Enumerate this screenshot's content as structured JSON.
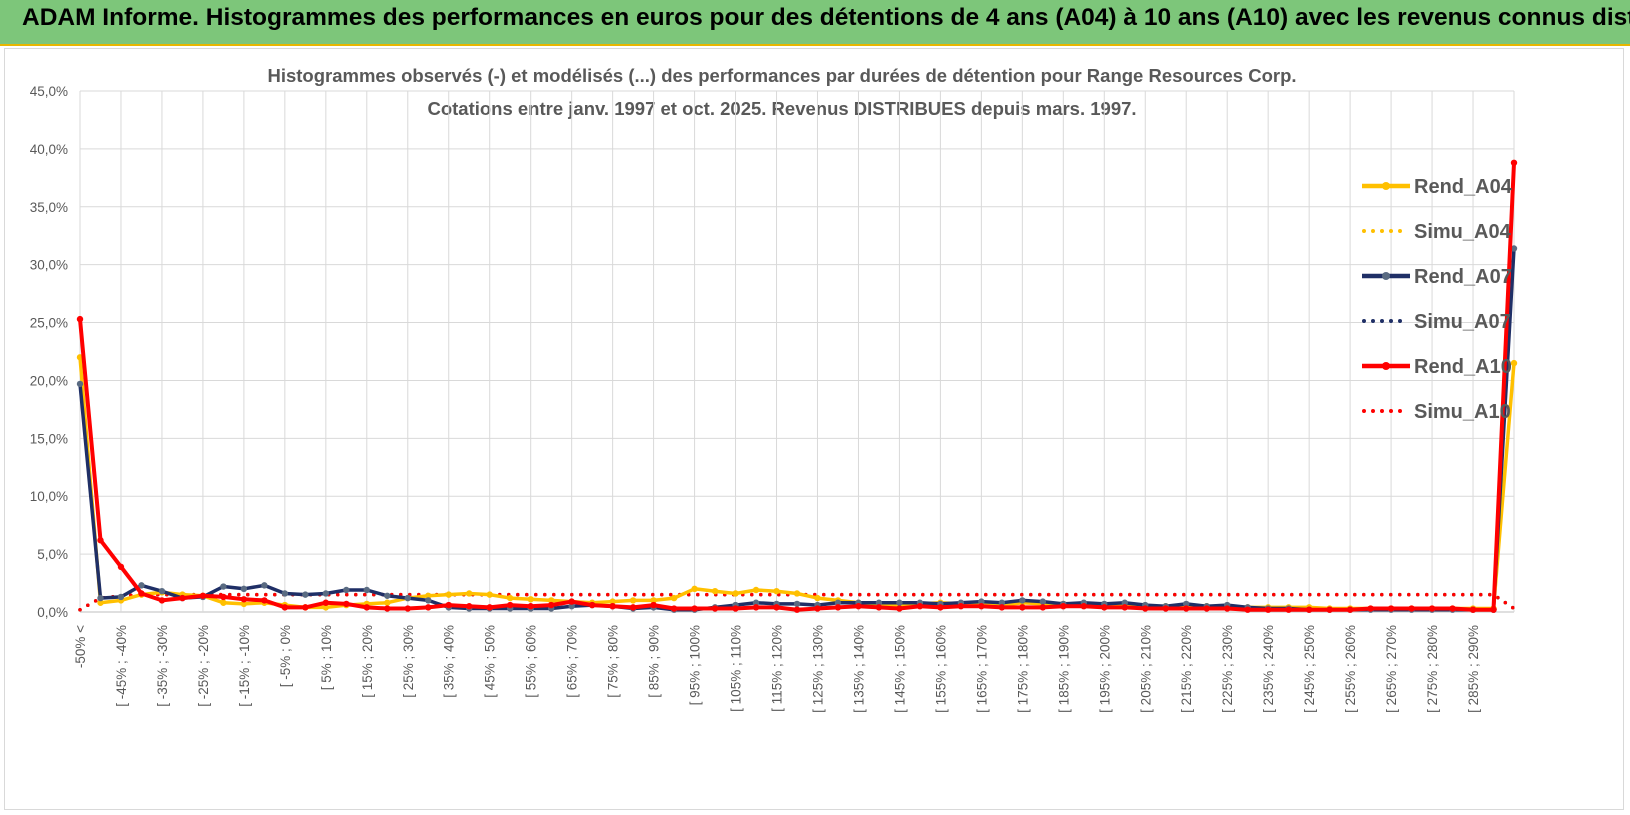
{
  "header": {
    "title": "ADAM Informe. Histogrammes des performances en euros pour des détentions de 4 ans (A04) à 10 ans (A10) avec les revenus connus distribués"
  },
  "colors": {
    "banner": "#7dc67a",
    "A04": "#ffc000",
    "A07": "#1f2f66",
    "A10": "#ff0000",
    "grid": "#d9d9d9",
    "text": "#595959"
  },
  "chart_data": {
    "type": "line",
    "title": "Histogrammes observés (-) et modélisés (...) des performances par durées de détention pour Range Resources Corp.",
    "subtitle": "Cotations entre janv. 1997 et oct. 2025.  Revenus DISTRIBUES depuis mars. 1997.",
    "xlabel": "",
    "ylabel": "",
    "ylim": [
      0,
      45
    ],
    "yticks": [
      "0,0%",
      "5,0%",
      "10,0%",
      "15,0%",
      "20,0%",
      "25,0%",
      "30,0%",
      "35,0%",
      "40,0%",
      "45,0%"
    ],
    "n_points": 71,
    "xtick_labels": [
      "-50% <",
      "[ -45% ; -40%",
      "[ -35% ; -30%",
      "[ -25% ; -20%",
      "[ -15% ; -10%",
      "[ -5% ; 0%",
      "[ 5% ; 10%",
      "[ 15% ; 20%",
      "[ 25% ; 30%",
      "[ 35% ; 40%",
      "[ 45% ; 50%",
      "[ 55% ; 60%",
      "[ 65% ; 70%",
      "[ 75% ; 80%",
      "[ 85% ; 90%",
      "[ 95% ; 100%",
      "[ 105% ; 110%",
      "[ 115% ; 120%",
      "[ 125% ; 130%",
      "[ 135% ; 140%",
      "[ 145% ; 150%",
      "[ 155% ; 160%",
      "[ 165% ; 170%",
      "[ 175% ; 180%",
      "[ 185% ; 190%",
      "[ 195% ; 200%",
      "[ 205% ; 210%",
      "[ 215% ; 220%",
      "[ 225% ; 230%",
      "[ 235% ; 240%",
      "[ 245% ; 250%",
      "[ 255% ; 260%",
      "[ 265% ; 270%",
      "[ 275% ; 280%",
      "[ 285% ; 290%"
    ],
    "legend_position": "right",
    "series": [
      {
        "name": "Rend_A04",
        "style": "solid",
        "color": "#ffc000",
        "values": [
          22.0,
          0.8,
          1.0,
          1.5,
          1.7,
          1.5,
          1.4,
          0.8,
          0.7,
          0.8,
          0.6,
          0.4,
          0.4,
          0.6,
          0.7,
          0.8,
          1.2,
          1.4,
          1.5,
          1.6,
          1.5,
          1.2,
          1.1,
          1.0,
          0.9,
          0.8,
          0.9,
          1.0,
          1.0,
          1.2,
          2.0,
          1.8,
          1.6,
          1.9,
          1.8,
          1.6,
          1.2,
          1.0,
          0.8,
          0.6,
          0.6,
          0.7,
          0.8,
          0.7,
          0.7,
          0.6,
          0.8,
          0.7,
          0.7,
          0.6,
          0.6,
          0.6,
          0.5,
          0.5,
          0.5,
          0.5,
          0.5,
          0.4,
          0.4,
          0.4,
          0.4,
          0.3,
          0.3,
          0.3,
          0.3,
          0.3,
          0.3,
          0.3,
          0.3,
          0.3,
          21.5
        ]
      },
      {
        "name": "Simu_A04",
        "style": "dotted",
        "color": "#ffc000",
        "values": [
          0.2,
          1.2,
          1.4,
          1.5,
          1.5,
          1.5,
          1.5,
          1.5,
          1.5,
          1.5,
          1.5,
          1.5,
          1.5,
          1.5,
          1.5,
          1.5,
          1.5,
          1.5,
          1.5,
          1.5,
          1.5,
          1.5,
          1.5,
          1.5,
          1.5,
          1.5,
          1.5,
          1.5,
          1.5,
          1.5,
          1.5,
          1.5,
          1.5,
          1.5,
          1.5,
          1.5,
          1.5,
          1.5,
          1.5,
          1.5,
          1.5,
          1.5,
          1.5,
          1.5,
          1.5,
          1.5,
          1.5,
          1.5,
          1.5,
          1.5,
          1.5,
          1.5,
          1.5,
          1.5,
          1.5,
          1.5,
          1.5,
          1.5,
          1.5,
          1.5,
          1.5,
          1.5,
          1.5,
          1.5,
          1.5,
          1.5,
          1.5,
          1.5,
          1.5,
          1.5,
          0.3
        ]
      },
      {
        "name": "Rend_A07",
        "style": "solid",
        "color": "#1f2f66",
        "values": [
          19.7,
          1.2,
          1.3,
          2.3,
          1.8,
          1.2,
          1.3,
          2.2,
          2.0,
          2.3,
          1.6,
          1.5,
          1.6,
          1.9,
          1.9,
          1.4,
          1.2,
          1.0,
          0.4,
          0.3,
          0.3,
          0.3,
          0.3,
          0.3,
          0.5,
          0.6,
          0.5,
          0.3,
          0.4,
          0.2,
          0.2,
          0.4,
          0.6,
          0.8,
          0.7,
          0.7,
          0.6,
          0.8,
          0.8,
          0.8,
          0.8,
          0.8,
          0.7,
          0.8,
          0.9,
          0.8,
          1.0,
          0.9,
          0.7,
          0.8,
          0.7,
          0.8,
          0.6,
          0.5,
          0.7,
          0.5,
          0.6,
          0.4,
          0.3,
          0.3,
          0.2,
          0.2,
          0.2,
          0.2,
          0.2,
          0.2,
          0.2,
          0.2,
          0.2,
          0.2,
          31.4
        ]
      },
      {
        "name": "Simu_A07",
        "style": "dotted",
        "color": "#1f2f66",
        "values": [
          0.2,
          1.2,
          1.4,
          1.5,
          1.5,
          1.5,
          1.5,
          1.5,
          1.5,
          1.5,
          1.5,
          1.5,
          1.5,
          1.5,
          1.5,
          1.5,
          1.5,
          1.5,
          1.5,
          1.5,
          1.5,
          1.5,
          1.5,
          1.5,
          1.5,
          1.5,
          1.5,
          1.5,
          1.5,
          1.5,
          1.5,
          1.5,
          1.5,
          1.5,
          1.5,
          1.5,
          1.5,
          1.5,
          1.5,
          1.5,
          1.5,
          1.5,
          1.5,
          1.5,
          1.5,
          1.5,
          1.5,
          1.5,
          1.5,
          1.5,
          1.5,
          1.5,
          1.5,
          1.5,
          1.5,
          1.5,
          1.5,
          1.5,
          1.5,
          1.5,
          1.5,
          1.5,
          1.5,
          1.5,
          1.5,
          1.5,
          1.5,
          1.5,
          1.5,
          1.5,
          0.3
        ]
      },
      {
        "name": "Rend_A10",
        "style": "solid",
        "color": "#ff0000",
        "values": [
          25.3,
          6.2,
          3.9,
          1.6,
          1.0,
          1.2,
          1.4,
          1.3,
          1.1,
          1.0,
          0.4,
          0.4,
          0.8,
          0.7,
          0.4,
          0.3,
          0.3,
          0.4,
          0.6,
          0.5,
          0.4,
          0.6,
          0.5,
          0.6,
          0.9,
          0.6,
          0.5,
          0.4,
          0.6,
          0.3,
          0.3,
          0.3,
          0.3,
          0.4,
          0.4,
          0.2,
          0.3,
          0.4,
          0.5,
          0.4,
          0.3,
          0.5,
          0.4,
          0.5,
          0.5,
          0.4,
          0.4,
          0.4,
          0.5,
          0.5,
          0.4,
          0.4,
          0.3,
          0.3,
          0.3,
          0.3,
          0.3,
          0.2,
          0.2,
          0.2,
          0.2,
          0.2,
          0.2,
          0.3,
          0.3,
          0.3,
          0.3,
          0.3,
          0.2,
          0.2,
          38.8
        ]
      },
      {
        "name": "Simu_A10",
        "style": "dotted",
        "color": "#ff0000",
        "values": [
          0.2,
          1.2,
          1.4,
          1.5,
          1.5,
          1.5,
          1.5,
          1.5,
          1.5,
          1.5,
          1.5,
          1.5,
          1.5,
          1.5,
          1.5,
          1.5,
          1.5,
          1.5,
          1.5,
          1.5,
          1.5,
          1.5,
          1.5,
          1.5,
          1.5,
          1.5,
          1.5,
          1.5,
          1.5,
          1.5,
          1.5,
          1.5,
          1.5,
          1.5,
          1.5,
          1.5,
          1.5,
          1.5,
          1.5,
          1.5,
          1.5,
          1.5,
          1.5,
          1.5,
          1.5,
          1.5,
          1.5,
          1.5,
          1.5,
          1.5,
          1.5,
          1.5,
          1.5,
          1.5,
          1.5,
          1.5,
          1.5,
          1.5,
          1.5,
          1.5,
          1.5,
          1.5,
          1.5,
          1.5,
          1.5,
          1.5,
          1.5,
          1.5,
          1.5,
          1.5,
          0.3
        ]
      }
    ]
  }
}
